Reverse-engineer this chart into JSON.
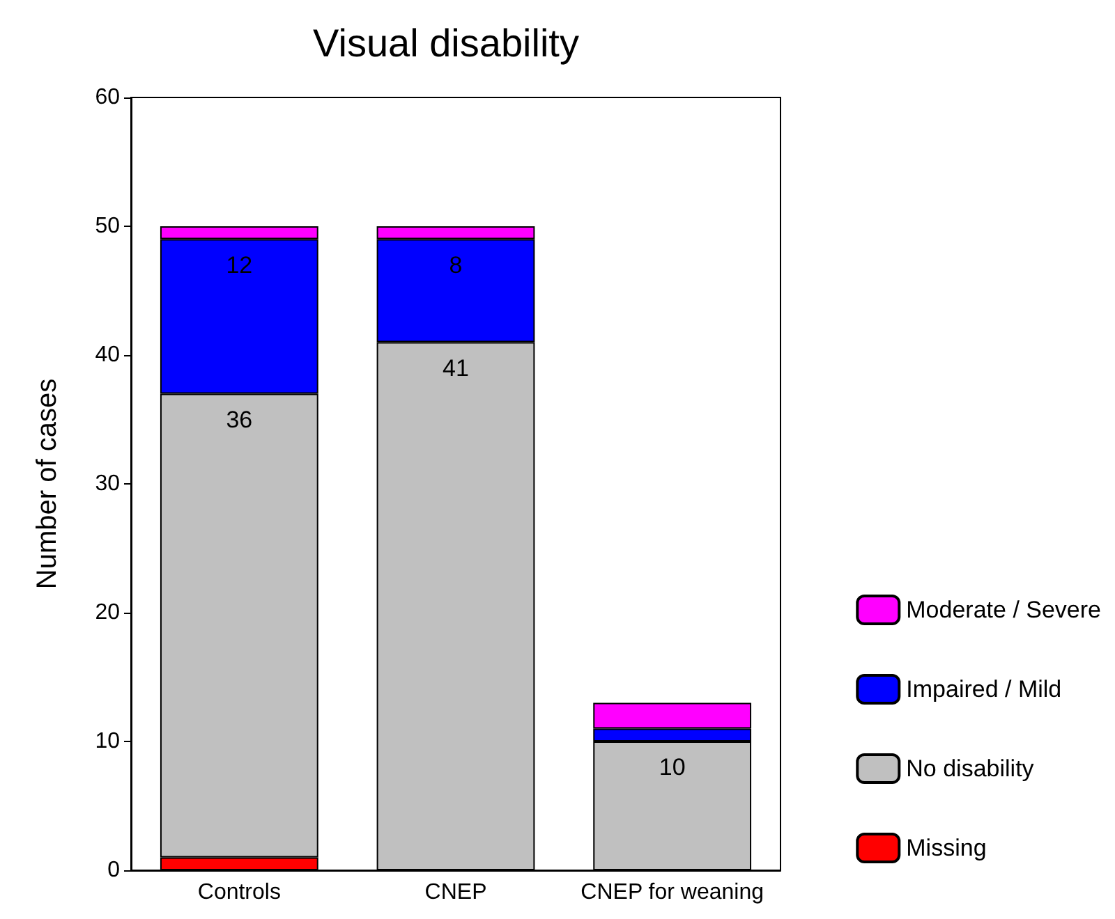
{
  "chart_data": {
    "type": "bar",
    "title": "Visual disability",
    "ylabel": "Number of cases",
    "categories": [
      "Controls",
      "CNEP",
      "CNEP for weaning"
    ],
    "stacked": true,
    "series": [
      {
        "name": "Missing",
        "color": "#ff0000",
        "values": [
          1,
          0,
          0
        ]
      },
      {
        "name": "No disability",
        "color": "#c0c0c0",
        "values": [
          36,
          41,
          10
        ],
        "value_labels": [
          "36",
          "41",
          "10"
        ]
      },
      {
        "name": "Impaired / Mild",
        "color": "#0000ff",
        "values": [
          12,
          8,
          1
        ],
        "value_labels": [
          "12",
          "8",
          null
        ]
      },
      {
        "name": "Moderate / Severe",
        "color": "#ff00ff",
        "values": [
          1,
          1,
          2
        ]
      }
    ],
    "ylim": [
      0,
      60
    ],
    "yticks": [
      0,
      10,
      20,
      30,
      40,
      50,
      60
    ],
    "grid": false,
    "legend": "right"
  }
}
